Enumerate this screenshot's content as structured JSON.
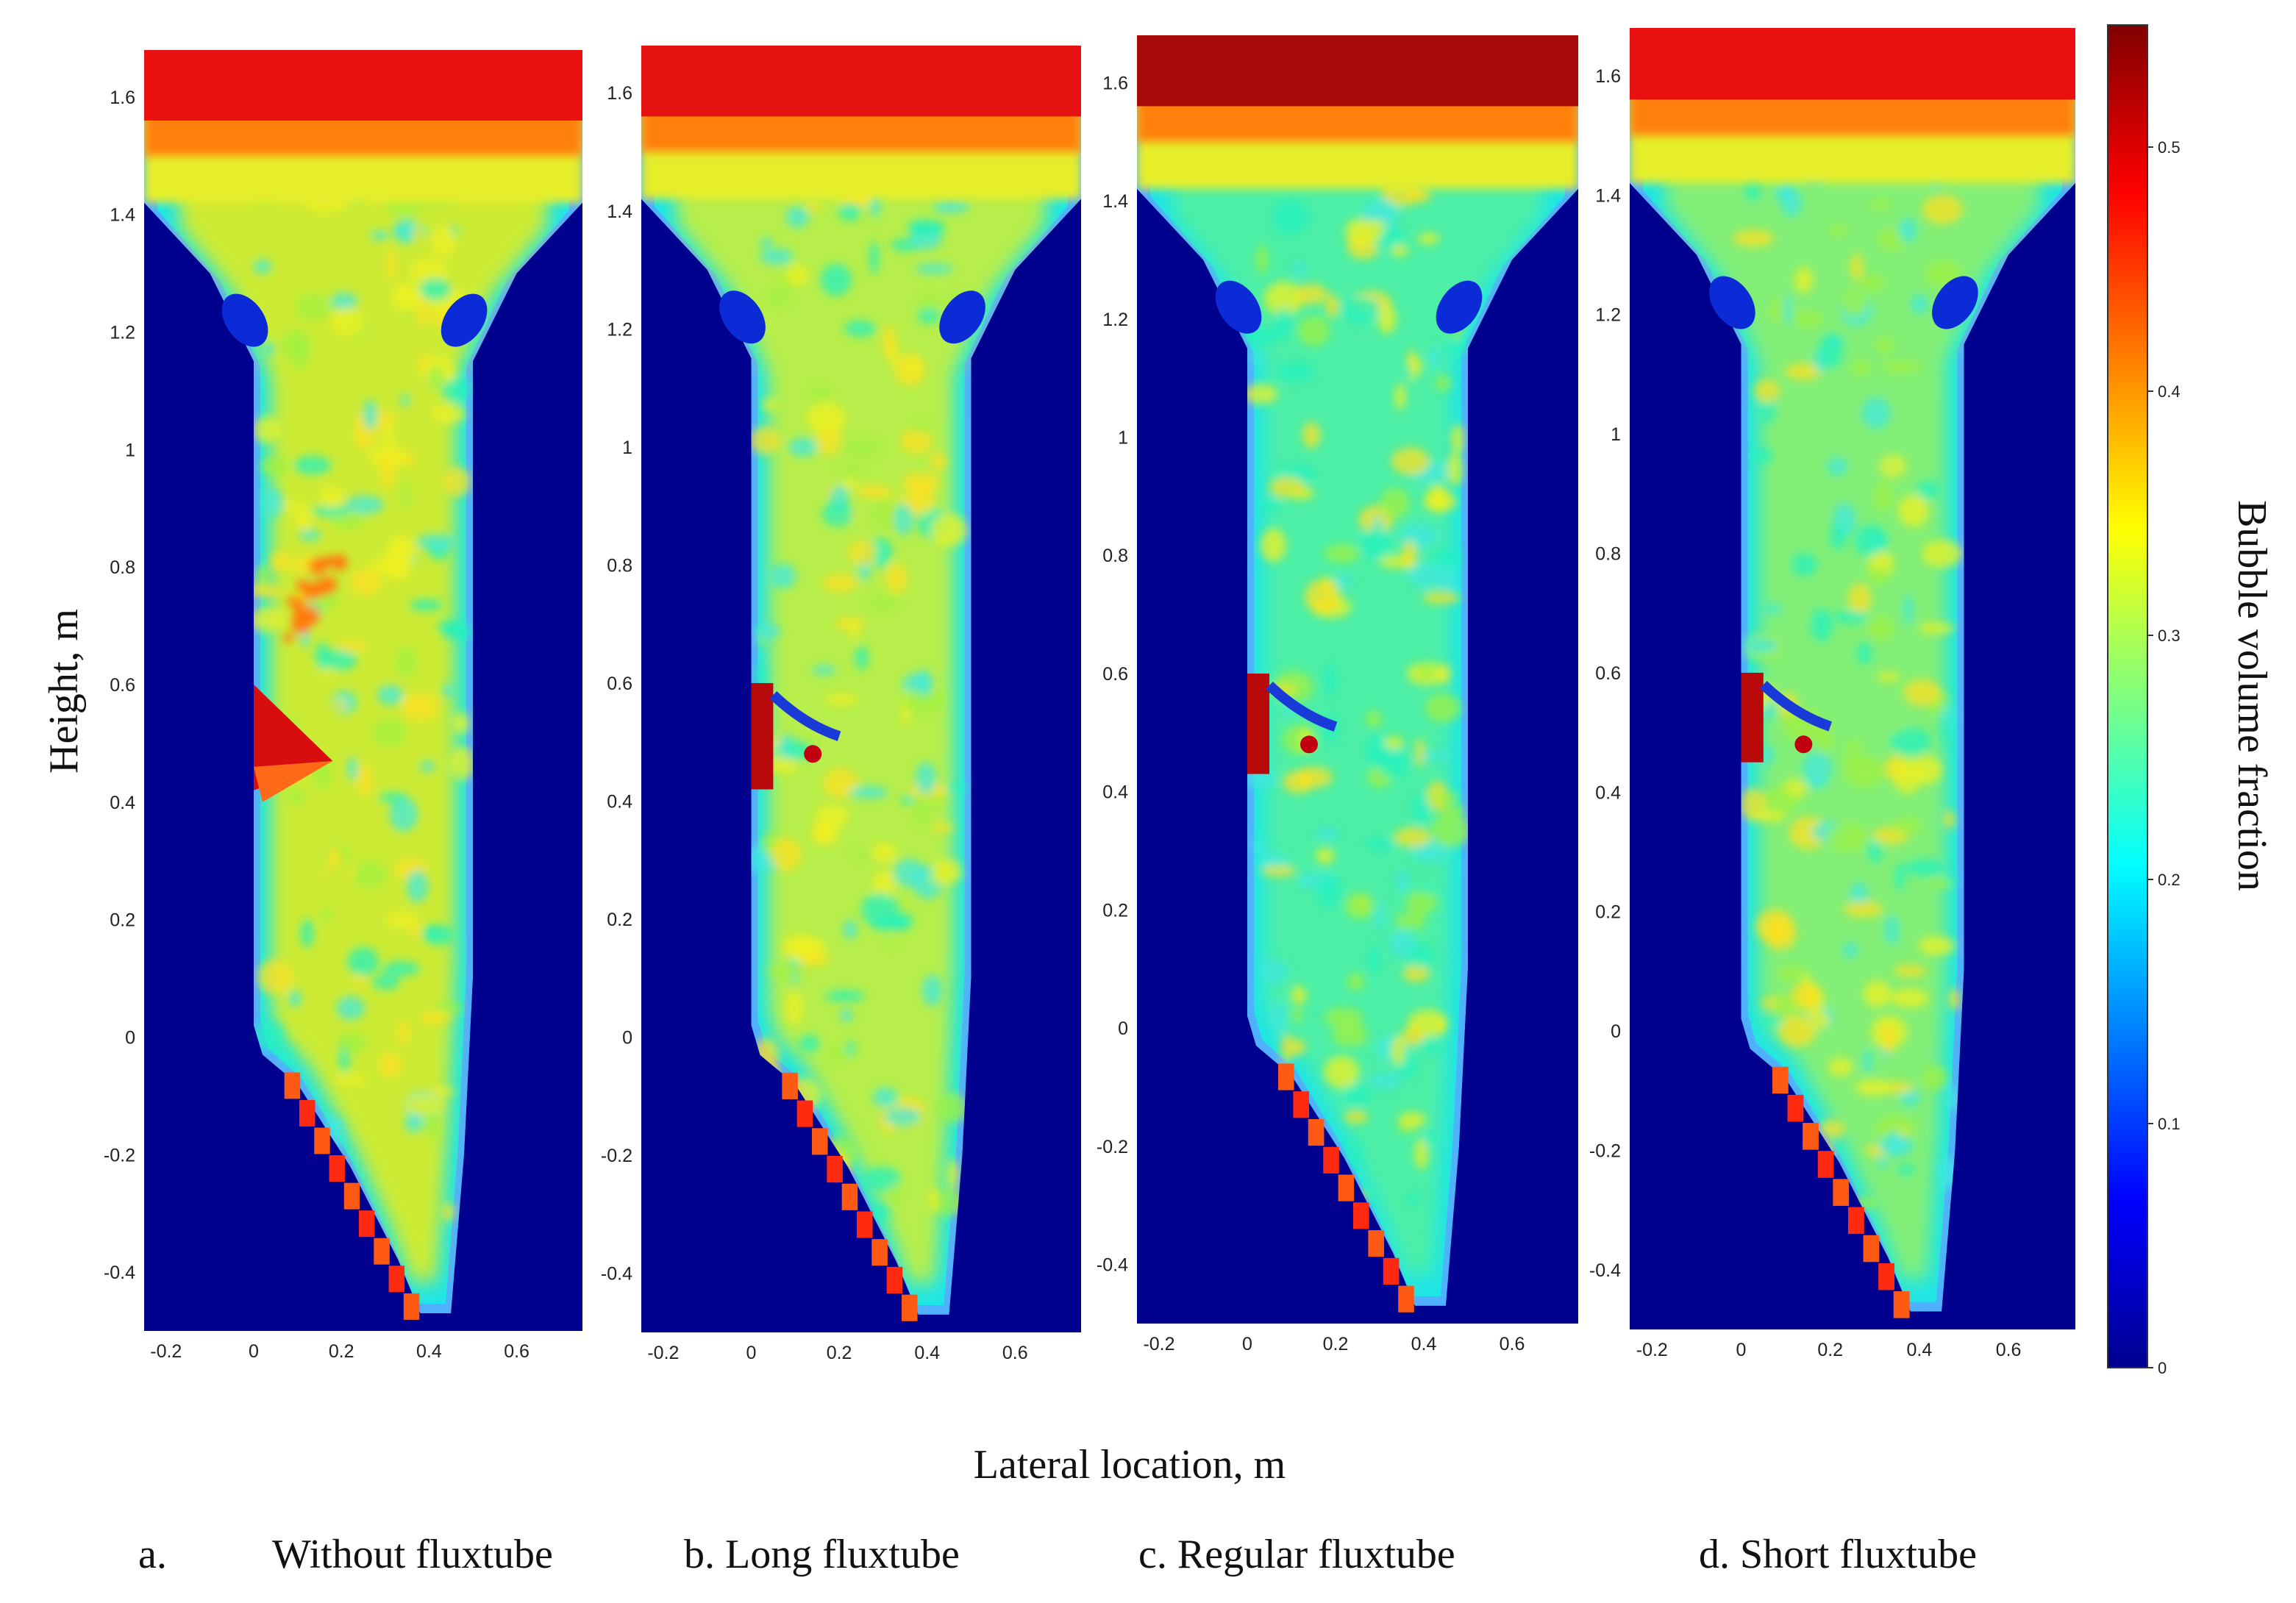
{
  "chart_data": {
    "type": "heatmap",
    "xlabel": "Lateral location, m",
    "ylabel": "Height, m",
    "colorbar_label": "Bubble volume fraction",
    "colorbar_range": [
      0,
      0.55
    ],
    "colorbar_ticks": [
      "0",
      "0.1",
      "0.2",
      "0.3",
      "0.4",
      "0.5"
    ],
    "colormap": "jet",
    "xlim": [
      -0.25,
      0.75
    ],
    "ylim": [
      -0.5,
      1.68
    ],
    "x_ticks": [
      "-0.2",
      "0",
      "0.2",
      "0.4",
      "0.6"
    ],
    "y_ticks": [
      "-0.4",
      "-0.2",
      "0",
      "0.2",
      "0.4",
      "0.6",
      "0.8",
      "1",
      "1.2",
      "1.4",
      "1.6"
    ],
    "background_color": "#00008f",
    "panels": [
      {
        "letter": "a.",
        "caption": "Without fluxtube",
        "top_color": "#e81010",
        "body_color": "#e0ec24",
        "fluxtube_top": 0.6,
        "fluxtube_bottom": 0.42
      },
      {
        "letter": "",
        "caption": "b. Long fluxtube",
        "top_color": "#e61212",
        "body_color": "#c8ef3a",
        "fluxtube_top": 0.6,
        "fluxtube_bottom": 0.42
      },
      {
        "letter": "",
        "caption": "c. Regular fluxtube",
        "top_color": "#a80a0a",
        "body_color": "#52f0a0",
        "fluxtube_top": 0.6,
        "fluxtube_bottom": 0.43
      },
      {
        "letter": "",
        "caption": "d. Short fluxtube",
        "top_color": "#e81010",
        "body_color": "#8ef06c",
        "fluxtube_top": 0.6,
        "fluxtube_bottom": 0.45
      }
    ]
  }
}
